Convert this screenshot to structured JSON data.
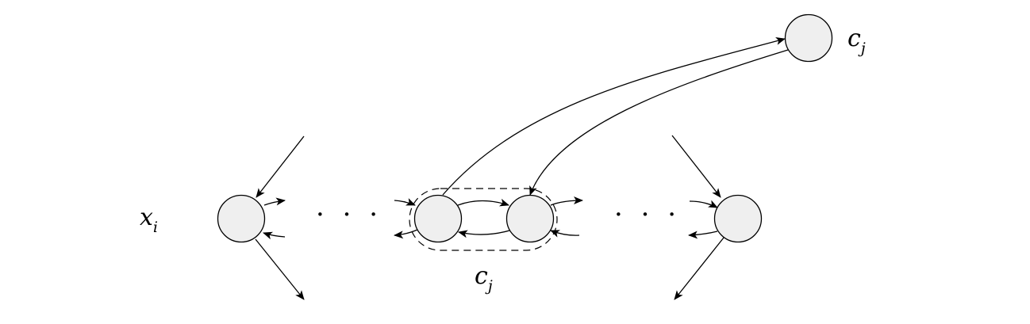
{
  "labels": {
    "variable_node": {
      "base": "x",
      "sub": "i"
    },
    "clause_node_top": {
      "base": "c",
      "sub": "j"
    },
    "clause_gadget": {
      "base": "c",
      "sub": "j"
    }
  },
  "ellipsis_left": "· · ·",
  "ellipsis_right": "· · ·",
  "colors": {
    "node_fill": "#efefef",
    "stroke": "#000000",
    "background": "#ffffff"
  }
}
